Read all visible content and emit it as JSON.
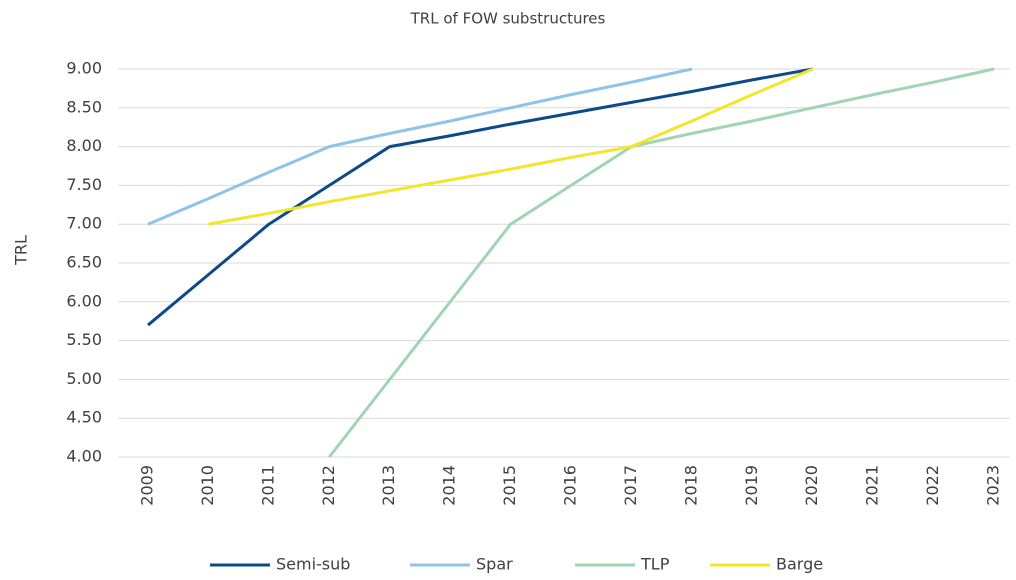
{
  "chart_data": {
    "type": "line",
    "title": "TRL of FOW substructures",
    "y_label": "TRL",
    "categories": [
      "2009",
      "2010",
      "2011",
      "2012",
      "2013",
      "2014",
      "2015",
      "2016",
      "2017",
      "2018",
      "2019",
      "2020",
      "2021",
      "2022",
      "2023"
    ],
    "series": [
      {
        "name": "Semi-sub",
        "color": "#0d4a87",
        "values": [
          5.7,
          6.35,
          7.0,
          7.5,
          8.0,
          8.14,
          8.29,
          8.43,
          8.57,
          8.71,
          8.86,
          9.0,
          null,
          null,
          null
        ]
      },
      {
        "name": "Spar",
        "color": "#8ec3ea",
        "values": [
          7.0,
          7.33,
          7.67,
          8.0,
          8.17,
          8.33,
          8.5,
          8.67,
          8.83,
          9.0,
          null,
          null,
          null,
          null,
          null
        ]
      },
      {
        "name": "TLP",
        "color": "#a0d4b4",
        "values": [
          null,
          null,
          null,
          4.0,
          5.0,
          6.0,
          7.0,
          7.5,
          8.0,
          8.17,
          8.33,
          8.5,
          8.67,
          8.83,
          9.0
        ]
      },
      {
        "name": "Barge",
        "color": "#f2e52a",
        "values": [
          null,
          7.0,
          7.14,
          7.29,
          7.43,
          7.57,
          7.71,
          7.86,
          8.0,
          8.33,
          8.67,
          9.0,
          null,
          null,
          null
        ]
      }
    ],
    "ylim": [
      4,
      9
    ],
    "yticks": [
      {
        "value": 4,
        "label": "4.00"
      },
      {
        "value": 4.5,
        "label": "4.50"
      },
      {
        "value": 5,
        "label": "5.00"
      },
      {
        "value": 5.5,
        "label": "5.50"
      },
      {
        "value": 6,
        "label": "6.00"
      },
      {
        "value": 6.5,
        "label": "6.50"
      },
      {
        "value": 7,
        "label": "7.00"
      },
      {
        "value": 7.5,
        "label": "7.50"
      },
      {
        "value": 8,
        "label": "8.00"
      },
      {
        "value": 8.5,
        "label": "8.50"
      },
      {
        "value": 9,
        "label": "9.00"
      }
    ],
    "grid": true,
    "legend": "bottom"
  }
}
